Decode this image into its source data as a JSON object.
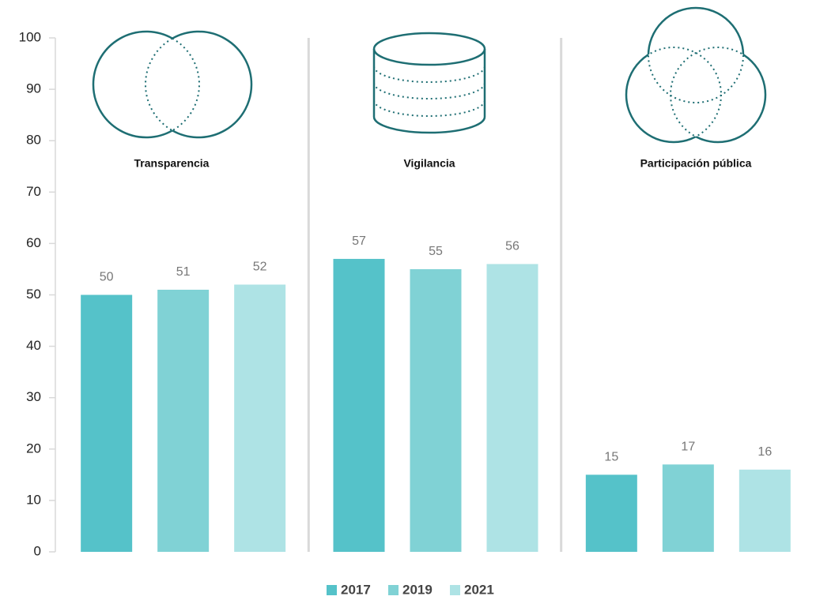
{
  "chart_data": {
    "type": "bar",
    "categories": [
      "Transparencia",
      "Vigilancia",
      "Participación pública"
    ],
    "series": [
      {
        "name": "2017",
        "color": "#55c2c9",
        "values": [
          50,
          57,
          15
        ]
      },
      {
        "name": "2019",
        "color": "#80d2d5",
        "values": [
          51,
          55,
          17
        ]
      },
      {
        "name": "2021",
        "color": "#aee3e5",
        "values": [
          52,
          56,
          16
        ]
      }
    ],
    "ylim": [
      0,
      100
    ],
    "yticks": [
      0,
      10,
      20,
      30,
      40,
      50,
      60,
      70,
      80,
      90,
      100
    ],
    "legend": "bottom"
  }
}
